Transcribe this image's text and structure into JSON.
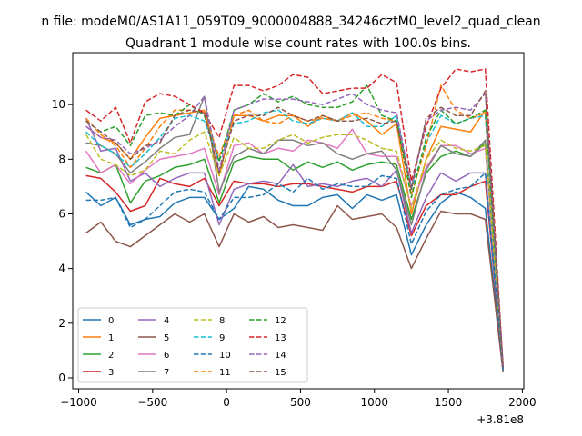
{
  "chart_data": {
    "type": "line",
    "suptitle": "n file: modeM0/AS1A11_059T09_9000004888_34246cztM0_level2_quad_clean",
    "title": "Quadrant 1 module wise count rates with 100.0s bins.",
    "offset_label": "+3.81e8",
    "xlim": [
      -1040,
      2010
    ],
    "ylim": [
      -0.4,
      11.9
    ],
    "xticks": [
      -1000,
      -500,
      0,
      500,
      1000,
      1500,
      2000
    ],
    "xtick_labels": [
      "−1000",
      "−500",
      "0",
      "500",
      "1000",
      "1500",
      "2000"
    ],
    "yticks": [
      0,
      2,
      4,
      6,
      8,
      10
    ],
    "ytick_labels": [
      "0",
      "2",
      "4",
      "6",
      "8",
      "10"
    ],
    "legend_position": "lower-left",
    "grid": false,
    "x": [
      -950,
      -850,
      -750,
      -650,
      -550,
      -450,
      -350,
      -250,
      -150,
      -50,
      50,
      150,
      250,
      350,
      450,
      550,
      650,
      750,
      850,
      950,
      1050,
      1150,
      1250,
      1350,
      1450,
      1550,
      1650,
      1750,
      1870
    ],
    "series": [
      {
        "name": "0",
        "color": "#1f77b4",
        "dash": false,
        "values": [
          6.8,
          6.3,
          6.6,
          5.6,
          5.8,
          5.9,
          6.4,
          6.6,
          6.6,
          5.8,
          6.2,
          7.0,
          6.9,
          6.5,
          6.3,
          6.3,
          6.6,
          6.7,
          6.2,
          6.7,
          6.5,
          6.7,
          4.5,
          5.6,
          6.4,
          6.8,
          6.6,
          6.2,
          0.3
        ]
      },
      {
        "name": "1",
        "color": "#ff7f0e",
        "dash": false,
        "values": [
          9.2,
          8.8,
          8.6,
          8.0,
          8.8,
          9.5,
          9.6,
          9.7,
          9.8,
          7.4,
          9.6,
          9.6,
          9.4,
          9.6,
          9.6,
          9.2,
          9.6,
          9.4,
          9.7,
          9.4,
          8.9,
          9.3,
          6.0,
          8.0,
          9.2,
          9.1,
          9.0,
          9.8,
          0.3
        ]
      },
      {
        "name": "2",
        "color": "#2ca02c",
        "dash": false,
        "values": [
          7.7,
          7.5,
          7.8,
          6.4,
          7.2,
          7.4,
          7.7,
          7.8,
          8.0,
          6.4,
          7.9,
          8.1,
          8.0,
          8.0,
          7.6,
          7.9,
          7.7,
          7.9,
          7.6,
          7.8,
          7.9,
          7.8,
          5.8,
          7.5,
          8.1,
          8.3,
          8.1,
          8.6,
          0.2
        ]
      },
      {
        "name": "3",
        "color": "#d62728",
        "dash": false,
        "values": [
          7.4,
          7.3,
          6.8,
          6.1,
          6.3,
          7.3,
          7.1,
          7.0,
          7.3,
          6.3,
          7.2,
          7.1,
          7.1,
          7.0,
          7.1,
          7.1,
          7.0,
          6.9,
          6.8,
          7.0,
          7.0,
          7.2,
          5.2,
          6.3,
          6.7,
          6.7,
          7.0,
          7.2,
          0.3
        ]
      },
      {
        "name": "4",
        "color": "#9467bd",
        "dash": false,
        "values": [
          9.5,
          8.3,
          8.4,
          7.2,
          7.5,
          7.0,
          7.3,
          7.5,
          7.5,
          5.6,
          6.9,
          7.1,
          7.2,
          7.1,
          7.8,
          7.0,
          7.1,
          7.0,
          7.2,
          7.3,
          7.0,
          7.6,
          5.3,
          6.6,
          7.5,
          7.2,
          7.5,
          7.5,
          0.3
        ]
      },
      {
        "name": "5",
        "color": "#8c564b",
        "dash": false,
        "values": [
          5.3,
          5.7,
          5.0,
          4.8,
          5.2,
          5.6,
          6.0,
          5.7,
          6.0,
          4.8,
          6.0,
          5.7,
          5.9,
          5.5,
          5.6,
          5.5,
          5.4,
          6.3,
          5.8,
          5.9,
          6.0,
          5.5,
          4.0,
          5.1,
          6.1,
          6.0,
          6.0,
          5.8,
          0.2
        ]
      },
      {
        "name": "6",
        "color": "#e377c2",
        "dash": false,
        "values": [
          8.3,
          7.5,
          7.8,
          7.1,
          7.6,
          8.0,
          8.1,
          8.2,
          8.4,
          6.7,
          8.5,
          8.6,
          8.2,
          8.4,
          8.3,
          8.7,
          8.6,
          8.4,
          9.1,
          8.2,
          8.1,
          8.1,
          6.3,
          7.7,
          8.5,
          8.5,
          8.2,
          8.4,
          0.3
        ]
      },
      {
        "name": "7",
        "color": "#7f7f7f",
        "dash": false,
        "values": [
          8.6,
          8.5,
          8.2,
          7.5,
          7.9,
          8.4,
          8.8,
          8.9,
          10.3,
          6.8,
          8.1,
          8.4,
          8.2,
          8.7,
          8.7,
          8.5,
          8.6,
          8.2,
          8.0,
          8.2,
          8.3,
          7.6,
          5.6,
          7.6,
          8.5,
          8.2,
          8.1,
          8.7,
          0.2
        ]
      },
      {
        "name": "8",
        "color": "#bcbd22",
        "dash": true,
        "values": [
          8.9,
          8.0,
          7.8,
          7.4,
          7.6,
          8.3,
          8.2,
          8.7,
          9.0,
          7.4,
          8.8,
          8.4,
          8.4,
          8.7,
          8.9,
          8.6,
          8.8,
          8.9,
          8.9,
          8.7,
          8.4,
          8.3,
          6.2,
          8.0,
          8.7,
          8.4,
          8.3,
          8.5,
          0.4
        ]
      },
      {
        "name": "9",
        "color": "#17becf",
        "dash": true,
        "values": [
          9.0,
          8.5,
          8.2,
          7.7,
          8.2,
          8.8,
          9.5,
          9.6,
          9.4,
          8.0,
          9.3,
          9.4,
          9.7,
          9.8,
          9.4,
          9.3,
          9.5,
          9.4,
          9.7,
          9.2,
          9.2,
          9.6,
          6.9,
          8.6,
          9.6,
          9.3,
          9.5,
          9.6,
          0.4
        ]
      },
      {
        "name": "10",
        "color": "#1f77b4",
        "dash": true,
        "values": [
          6.5,
          6.5,
          6.6,
          5.5,
          5.8,
          6.3,
          6.8,
          6.9,
          6.8,
          5.8,
          6.6,
          6.6,
          6.7,
          7.1,
          6.8,
          7.3,
          6.9,
          7.1,
          7.0,
          7.0,
          7.4,
          7.3,
          4.9,
          6.1,
          6.7,
          6.9,
          7.0,
          7.5,
          0.3
        ]
      },
      {
        "name": "11",
        "color": "#ff7f0e",
        "dash": true,
        "values": [
          9.5,
          8.9,
          8.5,
          7.7,
          8.4,
          9.2,
          9.8,
          9.8,
          9.7,
          8.1,
          9.6,
          9.8,
          9.4,
          9.3,
          9.6,
          9.4,
          9.5,
          9.4,
          9.6,
          9.7,
          9.5,
          9.4,
          6.7,
          8.5,
          10.7,
          9.8,
          9.5,
          9.7,
          0.4
        ]
      },
      {
        "name": "12",
        "color": "#2ca02c",
        "dash": true,
        "values": [
          9.4,
          9.0,
          9.2,
          8.5,
          9.6,
          9.7,
          9.6,
          10.0,
          9.6,
          7.9,
          9.8,
          10.0,
          10.4,
          10.1,
          10.3,
          10.0,
          9.9,
          9.9,
          10.1,
          10.7,
          9.6,
          9.4,
          6.6,
          8.8,
          9.8,
          9.3,
          9.5,
          9.8,
          0.4
        ]
      },
      {
        "name": "13",
        "color": "#d62728",
        "dash": true,
        "values": [
          9.8,
          9.4,
          9.9,
          8.6,
          10.1,
          10.4,
          10.3,
          10.0,
          9.7,
          8.8,
          10.7,
          10.7,
          10.5,
          10.7,
          11.1,
          11.0,
          10.4,
          10.5,
          10.6,
          10.6,
          11.1,
          10.8,
          7.2,
          9.2,
          10.6,
          11.3,
          11.2,
          11.3,
          0.4
        ]
      },
      {
        "name": "14",
        "color": "#9467bd",
        "dash": true,
        "values": [
          9.2,
          8.8,
          8.7,
          8.2,
          8.4,
          8.7,
          9.2,
          9.6,
          10.3,
          7.6,
          9.8,
          10.0,
          10.2,
          10.2,
          10.2,
          10.1,
          10.0,
          10.2,
          10.4,
          10.0,
          9.8,
          9.7,
          7.0,
          9.4,
          9.8,
          9.9,
          9.8,
          10.4,
          0.4
        ]
      },
      {
        "name": "15",
        "color": "#8c564b",
        "dash": true,
        "values": [
          9.4,
          9.0,
          8.6,
          8.0,
          8.5,
          8.6,
          9.6,
          9.8,
          9.7,
          7.5,
          9.4,
          9.6,
          9.6,
          9.9,
          9.6,
          9.4,
          9.6,
          9.4,
          9.4,
          9.5,
          9.3,
          9.4,
          6.9,
          9.5,
          9.9,
          9.6,
          9.6,
          10.5,
          0.4
        ]
      }
    ]
  }
}
